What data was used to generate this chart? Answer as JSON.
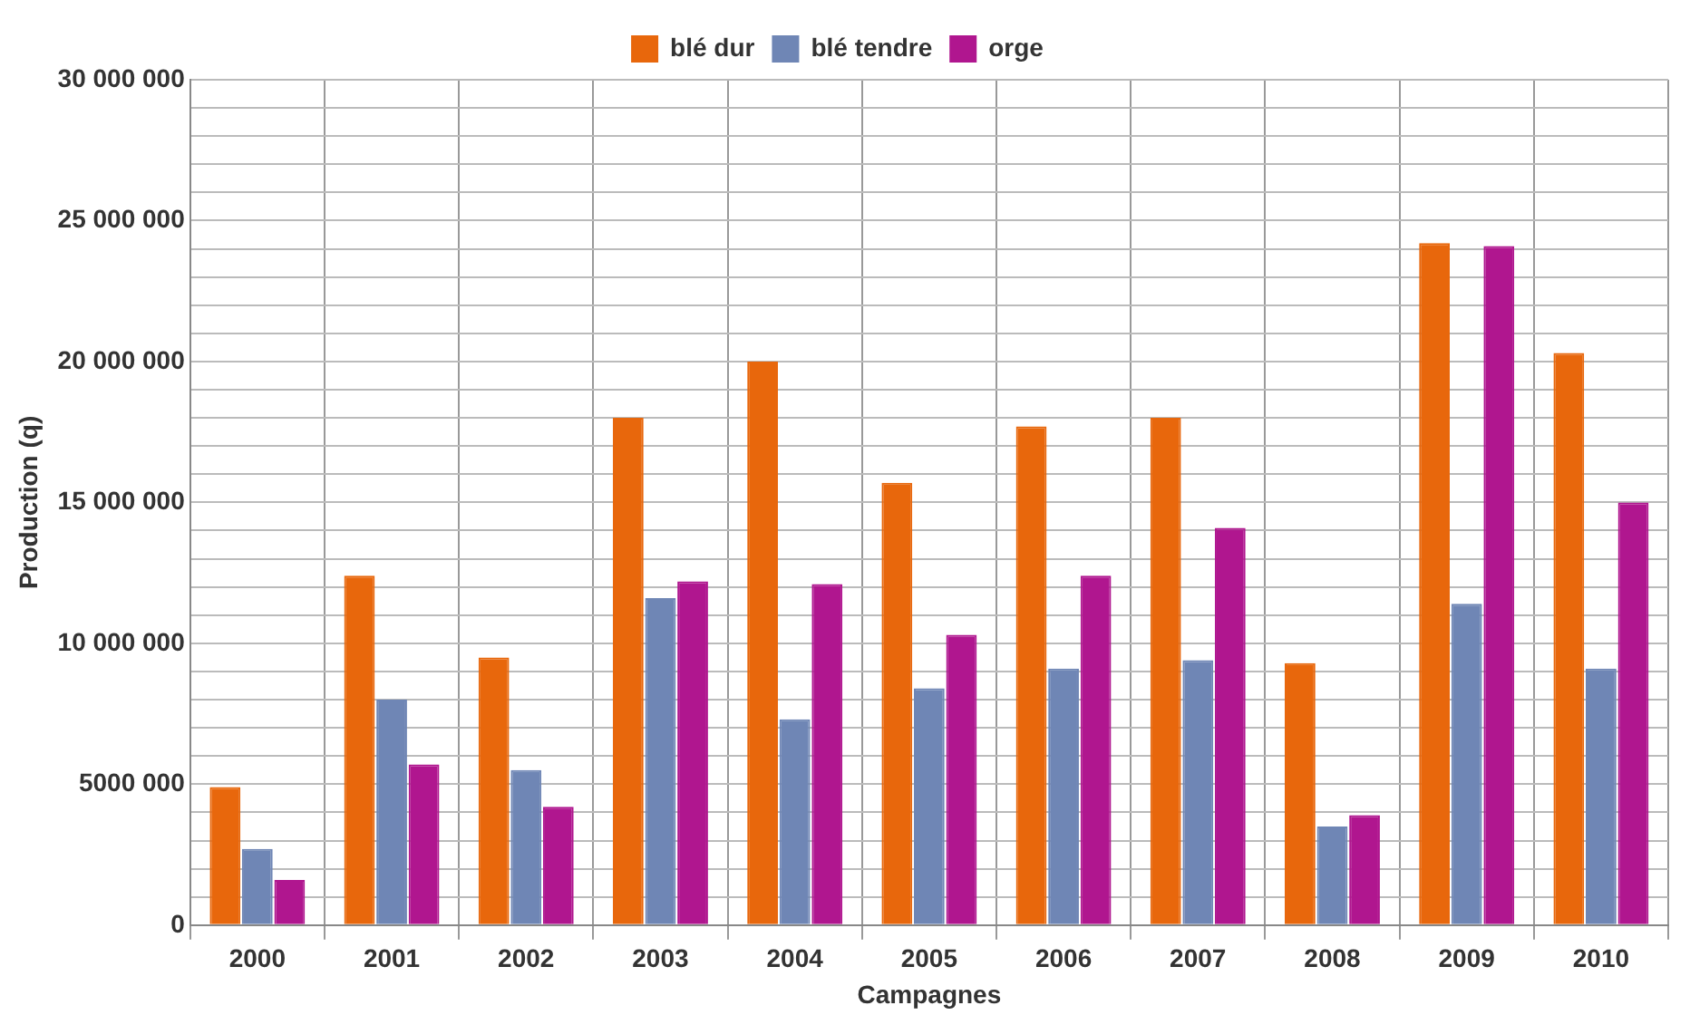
{
  "chart_data": {
    "type": "bar",
    "xlabel": "Campagnes",
    "ylabel": "Production (q)",
    "categories": [
      "2000",
      "2001",
      "2002",
      "2003",
      "2004",
      "2005",
      "2006",
      "2007",
      "2008",
      "2009",
      "2010"
    ],
    "series": [
      {
        "name": "blé dur",
        "color": "#e8670c",
        "values": [
          4900000,
          12400000,
          9500000,
          18000000,
          20000000,
          15700000,
          17700000,
          18000000,
          9300000,
          24200000,
          20300000
        ]
      },
      {
        "name": "blé tendre",
        "color": "#6f86b5",
        "values": [
          2700000,
          8000000,
          5500000,
          11600000,
          7300000,
          8400000,
          9100000,
          9400000,
          3500000,
          11400000,
          9100000
        ]
      },
      {
        "name": "orge",
        "color": "#b0168f",
        "values": [
          1600000,
          5700000,
          4200000,
          12200000,
          12100000,
          10300000,
          12400000,
          14100000,
          3900000,
          24100000,
          15000000
        ]
      }
    ],
    "ylim": [
      0,
      30000000
    ],
    "yticks": [
      0,
      {
        "value": 1000000,
        "label": null
      },
      {
        "value": 2000000,
        "label": null
      },
      {
        "value": 3000000,
        "label": null
      },
      {
        "value": 4000000,
        "label": null
      },
      {
        "value": 5000000,
        "label": "5000 000"
      },
      {
        "value": 6000000,
        "label": null
      },
      {
        "value": 7000000,
        "label": null
      },
      {
        "value": 8000000,
        "label": null
      },
      {
        "value": 9000000,
        "label": null
      },
      {
        "value": 10000000,
        "label": "10 000 000"
      },
      {
        "value": 11000000,
        "label": null
      },
      {
        "value": 12000000,
        "label": null
      },
      {
        "value": 13000000,
        "label": null
      },
      {
        "value": 14000000,
        "label": null
      },
      {
        "value": 15000000,
        "label": "15 000 000"
      },
      {
        "value": 16000000,
        "label": null
      },
      {
        "value": 17000000,
        "label": null
      },
      {
        "value": 18000000,
        "label": null
      },
      {
        "value": 19000000,
        "label": null
      },
      {
        "value": 20000000,
        "label": "20 000 000"
      },
      {
        "value": 21000000,
        "label": null
      },
      {
        "value": 22000000,
        "label": null
      },
      {
        "value": 23000000,
        "label": null
      },
      {
        "value": 24000000,
        "label": null
      },
      {
        "value": 25000000,
        "label": "25 000 000"
      },
      {
        "value": 26000000,
        "label": null
      },
      {
        "value": 27000000,
        "label": null
      },
      {
        "value": 28000000,
        "label": null
      },
      {
        "value": 29000000,
        "label": null
      },
      {
        "value": 30000000,
        "label": "30 000 000"
      }
    ],
    "grid": true,
    "legend": "top"
  }
}
